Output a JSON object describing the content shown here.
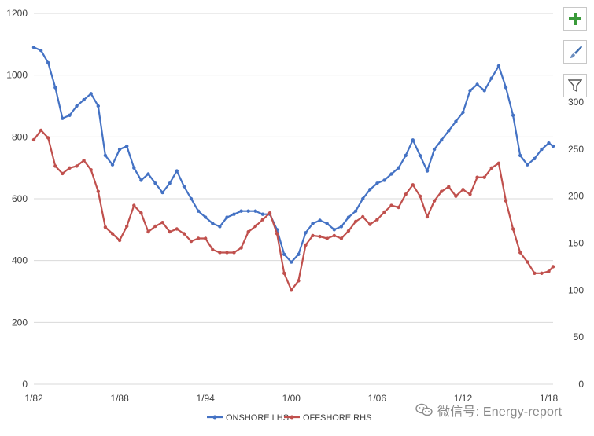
{
  "chart_data": {
    "type": "line",
    "x_tick_labels": [
      "1/82",
      "1/88",
      "1/94",
      "1/00",
      "1/06",
      "1/12",
      "1/18"
    ],
    "x_range": [
      1982.0,
      2018.3
    ],
    "y_left_ticks": [
      "0",
      "200",
      "400",
      "600",
      "800",
      "1000",
      "1200"
    ],
    "y_left_range": [
      0,
      1200
    ],
    "y_right_ticks": [
      "0",
      "50",
      "100",
      "150",
      "200",
      "250",
      "300"
    ],
    "y_right_range": [
      0,
      300
    ],
    "legend_position": "bottom",
    "grid": true,
    "series": [
      {
        "name": "ONSHORE LHS",
        "axis": "left",
        "color": "#4472c4",
        "points": [
          [
            1982.0,
            1090
          ],
          [
            1982.5,
            1080
          ],
          [
            1983.0,
            1040
          ],
          [
            1983.5,
            960
          ],
          [
            1984.0,
            860
          ],
          [
            1984.5,
            870
          ],
          [
            1985.0,
            900
          ],
          [
            1985.5,
            920
          ],
          [
            1986.0,
            940
          ],
          [
            1986.5,
            900
          ],
          [
            1987.0,
            740
          ],
          [
            1987.5,
            710
          ],
          [
            1988.0,
            760
          ],
          [
            1988.5,
            770
          ],
          [
            1989.0,
            700
          ],
          [
            1989.5,
            660
          ],
          [
            1990.0,
            680
          ],
          [
            1990.5,
            650
          ],
          [
            1991.0,
            620
          ],
          [
            1991.5,
            650
          ],
          [
            1992.0,
            690
          ],
          [
            1992.5,
            640
          ],
          [
            1993.0,
            600
          ],
          [
            1993.5,
            560
          ],
          [
            1994.0,
            540
          ],
          [
            1994.5,
            520
          ],
          [
            1995.0,
            510
          ],
          [
            1995.5,
            540
          ],
          [
            1996.0,
            550
          ],
          [
            1996.5,
            560
          ],
          [
            1997.0,
            560
          ],
          [
            1997.5,
            560
          ],
          [
            1998.0,
            550
          ],
          [
            1998.5,
            550
          ],
          [
            1999.0,
            500
          ],
          [
            1999.5,
            420
          ],
          [
            2000.0,
            395
          ],
          [
            2000.5,
            420
          ],
          [
            2001.0,
            490
          ],
          [
            2001.5,
            520
          ],
          [
            2002.0,
            530
          ],
          [
            2002.5,
            520
          ],
          [
            2003.0,
            500
          ],
          [
            2003.5,
            510
          ],
          [
            2004.0,
            540
          ],
          [
            2004.5,
            560
          ],
          [
            2005.0,
            600
          ],
          [
            2005.5,
            630
          ],
          [
            2006.0,
            650
          ],
          [
            2006.5,
            660
          ],
          [
            2007.0,
            680
          ],
          [
            2007.5,
            700
          ],
          [
            2008.0,
            740
          ],
          [
            2008.5,
            790
          ],
          [
            2009.0,
            740
          ],
          [
            2009.5,
            690
          ],
          [
            2010.0,
            760
          ],
          [
            2010.5,
            790
          ],
          [
            2011.0,
            820
          ],
          [
            2011.5,
            850
          ],
          [
            2012.0,
            880
          ],
          [
            2012.5,
            950
          ],
          [
            2013.0,
            970
          ],
          [
            2013.5,
            950
          ],
          [
            2014.0,
            990
          ],
          [
            2014.5,
            1030
          ],
          [
            2015.0,
            960
          ],
          [
            2015.5,
            870
          ],
          [
            2016.0,
            740
          ],
          [
            2016.5,
            710
          ],
          [
            2017.0,
            730
          ],
          [
            2017.5,
            760
          ],
          [
            2018.0,
            780
          ],
          [
            2018.3,
            770
          ]
        ]
      },
      {
        "name": "OFFSHORE RHS",
        "axis": "right",
        "color": "#c0504d",
        "points": [
          [
            1982.0,
            260
          ],
          [
            1982.5,
            270
          ],
          [
            1983.0,
            262
          ],
          [
            1983.5,
            232
          ],
          [
            1984.0,
            224
          ],
          [
            1984.5,
            230
          ],
          [
            1985.0,
            232
          ],
          [
            1985.5,
            238
          ],
          [
            1986.0,
            228
          ],
          [
            1986.5,
            205
          ],
          [
            1987.0,
            167
          ],
          [
            1987.5,
            160
          ],
          [
            1988.0,
            153
          ],
          [
            1988.5,
            168
          ],
          [
            1989.0,
            190
          ],
          [
            1989.5,
            182
          ],
          [
            1990.0,
            162
          ],
          [
            1990.5,
            168
          ],
          [
            1991.0,
            172
          ],
          [
            1991.5,
            162
          ],
          [
            1992.0,
            165
          ],
          [
            1992.5,
            160
          ],
          [
            1993.0,
            152
          ],
          [
            1993.5,
            155
          ],
          [
            1994.0,
            155
          ],
          [
            1994.5,
            143
          ],
          [
            1995.0,
            140
          ],
          [
            1995.5,
            140
          ],
          [
            1996.0,
            140
          ],
          [
            1996.5,
            145
          ],
          [
            1997.0,
            162
          ],
          [
            1997.5,
            168
          ],
          [
            1998.0,
            175
          ],
          [
            1998.5,
            182
          ],
          [
            1999.0,
            160
          ],
          [
            1999.5,
            118
          ],
          [
            2000.0,
            100
          ],
          [
            2000.5,
            110
          ],
          [
            2001.0,
            148
          ],
          [
            2001.5,
            158
          ],
          [
            2002.0,
            157
          ],
          [
            2002.5,
            155
          ],
          [
            2003.0,
            158
          ],
          [
            2003.5,
            155
          ],
          [
            2004.0,
            163
          ],
          [
            2004.5,
            173
          ],
          [
            2005.0,
            178
          ],
          [
            2005.5,
            170
          ],
          [
            2006.0,
            175
          ],
          [
            2006.5,
            183
          ],
          [
            2007.0,
            190
          ],
          [
            2007.5,
            188
          ],
          [
            2008.0,
            202
          ],
          [
            2008.5,
            212
          ],
          [
            2009.0,
            200
          ],
          [
            2009.5,
            178
          ],
          [
            2010.0,
            195
          ],
          [
            2010.5,
            205
          ],
          [
            2011.0,
            210
          ],
          [
            2011.5,
            200
          ],
          [
            2012.0,
            207
          ],
          [
            2012.5,
            202
          ],
          [
            2013.0,
            220
          ],
          [
            2013.5,
            220
          ],
          [
            2014.0,
            230
          ],
          [
            2014.5,
            235
          ],
          [
            2015.0,
            195
          ],
          [
            2015.5,
            165
          ],
          [
            2016.0,
            140
          ],
          [
            2016.5,
            130
          ],
          [
            2017.0,
            118
          ],
          [
            2017.5,
            118
          ],
          [
            2018.0,
            120
          ],
          [
            2018.3,
            125
          ]
        ]
      }
    ]
  },
  "toolbar": {
    "add_icon": "plus-icon",
    "style_icon": "paintbrush-icon",
    "filter_icon": "filter-icon"
  },
  "watermark": {
    "text": "微信号: Energy-report",
    "icon": "wechat-icon"
  }
}
